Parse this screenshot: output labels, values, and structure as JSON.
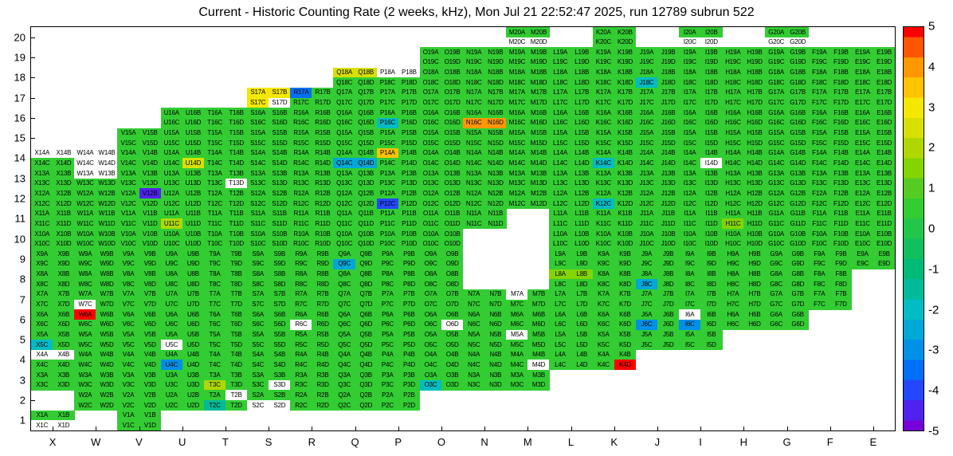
{
  "chart_data": {
    "type": "heatmap",
    "title": "Current - Historic Counting Rate (2 weeks, kHz), Mon Jul 21 22:52:47 2025, run 12789 subrun 522",
    "columns": [
      "X",
      "W",
      "V",
      "U",
      "T",
      "S",
      "R",
      "Q",
      "P",
      "O",
      "N",
      "M",
      "L",
      "K",
      "J",
      "I",
      "H",
      "G",
      "F",
      "E"
    ],
    "rows": [
      20,
      19,
      18,
      17,
      16,
      15,
      14,
      13,
      12,
      11,
      10,
      9,
      8,
      7,
      6,
      5,
      4,
      3,
      2,
      1
    ],
    "subcell_suffixes": [
      "A",
      "B",
      "C",
      "D"
    ],
    "row_columns": {
      "20": "MKIG",
      "19": "ONMLKJIHGFE",
      "18": "QPONMLKJIHGFE",
      "17": "SRQPONMLKJIHGFE",
      "16": "UTSRQPONMLKJIHGFE",
      "15": "VUTSRQPONMLKJIHGFE",
      "14": "XWVUTSRQPONMLKJIHGFE",
      "13": "XWVUTSRQPONMLKJIHGFE",
      "12": "XWVUTSRQPONMLKJIHGFE",
      "11": "XWVUTSRQPONLKJIHGFE",
      "10": "XWVUTSRQPOLKJIHGFE",
      "9": "XWVUTSRQPOLKJIHGFE",
      "8": "XWVUTSRQPOLKJIHGF",
      "7": "XWVUTSRQPONMLKJIHGF",
      "6": "XWVUTSRQPONMLKJIHG",
      "5": "XWVUTSRQPONMLKJI",
      "4": "XWVUTSRQPONMLK",
      "3": "XWVUTSRQPONM",
      "2": "WVUTSRQP",
      "1": "XV"
    },
    "value_range": [
      -5,
      5
    ],
    "default_value": 0.5,
    "overrides": {
      "Q18A": 2.5,
      "Q18B": 2.5,
      "J18C": -2,
      "S17A": 3,
      "S17B": 3,
      "S17C": 3,
      "R17A": -3.5,
      "N16C": 4,
      "N16D": 4,
      "P16C": -2,
      "U14D": 2.5,
      "Q14C": -2.5,
      "Q14D": -2.5,
      "P14A": 3.5,
      "K14C": -2,
      "V12B": -4.6,
      "P12C": -4.2,
      "K12C": -2,
      "U11C": 2,
      "H11C": 1.5,
      "Q9C": -2.5,
      "L8A": 1.5,
      "L8B": 1.5,
      "J8C": -2.5,
      "W6A": 5,
      "J6C": -3,
      "I6C": -3,
      "X5C": -2,
      "U4C": -3,
      "K4D": 5,
      "T3C": 2,
      "O3C": -2,
      "T2C": -1.5
    },
    "no_data": [
      "M20C",
      "M20D",
      "I20C",
      "I20D",
      "G20C",
      "G20D",
      "P18A",
      "P18B",
      "S17D",
      "X14A",
      "X14B",
      "W14A",
      "W14B",
      "W14C",
      "W14D",
      "I14D",
      "W13A",
      "W13B",
      "T13D",
      "W7C",
      "M7A",
      "R6C",
      "O6D",
      "I6A",
      "M5A",
      "U5C",
      "X4A",
      "X4B",
      "M4D",
      "S3D",
      "T2B",
      "S2C",
      "S2D",
      "X1C",
      "X1D"
    ],
    "palette": [
      [
        5,
        "#ff0000"
      ],
      [
        4.5,
        "#ff5500"
      ],
      [
        4,
        "#ff9800"
      ],
      [
        3.5,
        "#ffc300"
      ],
      [
        3,
        "#f5e800"
      ],
      [
        2.5,
        "#d7e000"
      ],
      [
        2,
        "#b0d800"
      ],
      [
        1.5,
        "#84d400"
      ],
      [
        1,
        "#55cc22"
      ],
      [
        0.5,
        "#33cc33"
      ],
      [
        0,
        "#21c64b"
      ],
      [
        -0.5,
        "#10c05e"
      ],
      [
        -1,
        "#00bb77"
      ],
      [
        -1.5,
        "#00bb99"
      ],
      [
        -2,
        "#00bcc4"
      ],
      [
        -2.5,
        "#00a8d8"
      ],
      [
        -3,
        "#0090e8"
      ],
      [
        -3.5,
        "#0070f8"
      ],
      [
        -4,
        "#2448ff"
      ],
      [
        -4.5,
        "#5022f0"
      ],
      [
        -5,
        "#7700d8"
      ]
    ],
    "colorbar_ticks": [
      5,
      4,
      3,
      2,
      1,
      0,
      -1,
      -2,
      -3,
      -4,
      -5
    ],
    "legend_position": "right",
    "grid": false
  }
}
